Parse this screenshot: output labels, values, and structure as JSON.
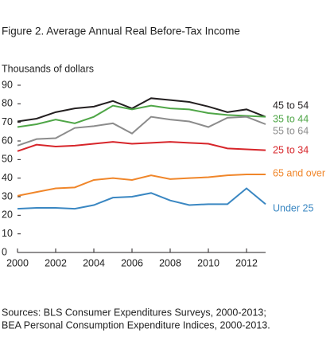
{
  "chart_data": {
    "type": "line",
    "title": "Figure 2. Average Annual Real Before-Tax Income",
    "y_label": "Thousands of dollars",
    "x": [
      2000,
      2001,
      2002,
      2003,
      2004,
      2005,
      2006,
      2007,
      2008,
      2009,
      2010,
      2011,
      2012,
      2013
    ],
    "series": [
      {
        "name": "45 to 54",
        "color": "#231f20",
        "values": [
          70.5,
          72,
          75.5,
          77.5,
          78.5,
          81.5,
          77.5,
          83,
          82,
          81,
          78.5,
          75.5,
          77,
          73
        ]
      },
      {
        "name": "35 to 44",
        "color": "#4fa647",
        "values": [
          67.5,
          69,
          71.5,
          69.5,
          73,
          79,
          77,
          79,
          77.5,
          77,
          75,
          74,
          73.5,
          73
        ]
      },
      {
        "name": "55 to 64",
        "color": "#8c8c8c",
        "values": [
          57.5,
          61,
          61.5,
          67,
          68,
          69.5,
          64,
          73,
          71.5,
          70.5,
          67.5,
          72.5,
          73,
          69
        ]
      },
      {
        "name": "25 to 34",
        "color": "#d7252a",
        "values": [
          54.5,
          58,
          57,
          57.5,
          58.5,
          59.5,
          58.5,
          59,
          59.5,
          59,
          58.5,
          56,
          55.5,
          55
        ]
      },
      {
        "name": "65 and over",
        "color": "#f0862a",
        "values": [
          30.5,
          32.5,
          34.5,
          35,
          39,
          40,
          39,
          41.5,
          39.5,
          40,
          40.5,
          41.5,
          42,
          42
        ]
      },
      {
        "name": "Under 25",
        "color": "#3a87c2",
        "values": [
          23.5,
          24,
          24,
          23.5,
          25.5,
          29.5,
          30,
          32,
          28,
          25.5,
          26,
          26,
          34.5,
          26
        ]
      }
    ],
    "xlim": [
      2000,
      2013
    ],
    "xticks": [
      2000,
      2002,
      2004,
      2006,
      2008,
      2010,
      2012
    ],
    "ylim": [
      0,
      90
    ],
    "yticks": [
      0,
      10,
      20,
      30,
      40,
      50,
      60,
      70,
      80,
      90
    ],
    "sources": [
      "Sources:  BLS Consumer Expenditures Surveys, 2000-2013;",
      "BEA Personal Consumption Expenditure Indices, 2000-2013."
    ]
  }
}
